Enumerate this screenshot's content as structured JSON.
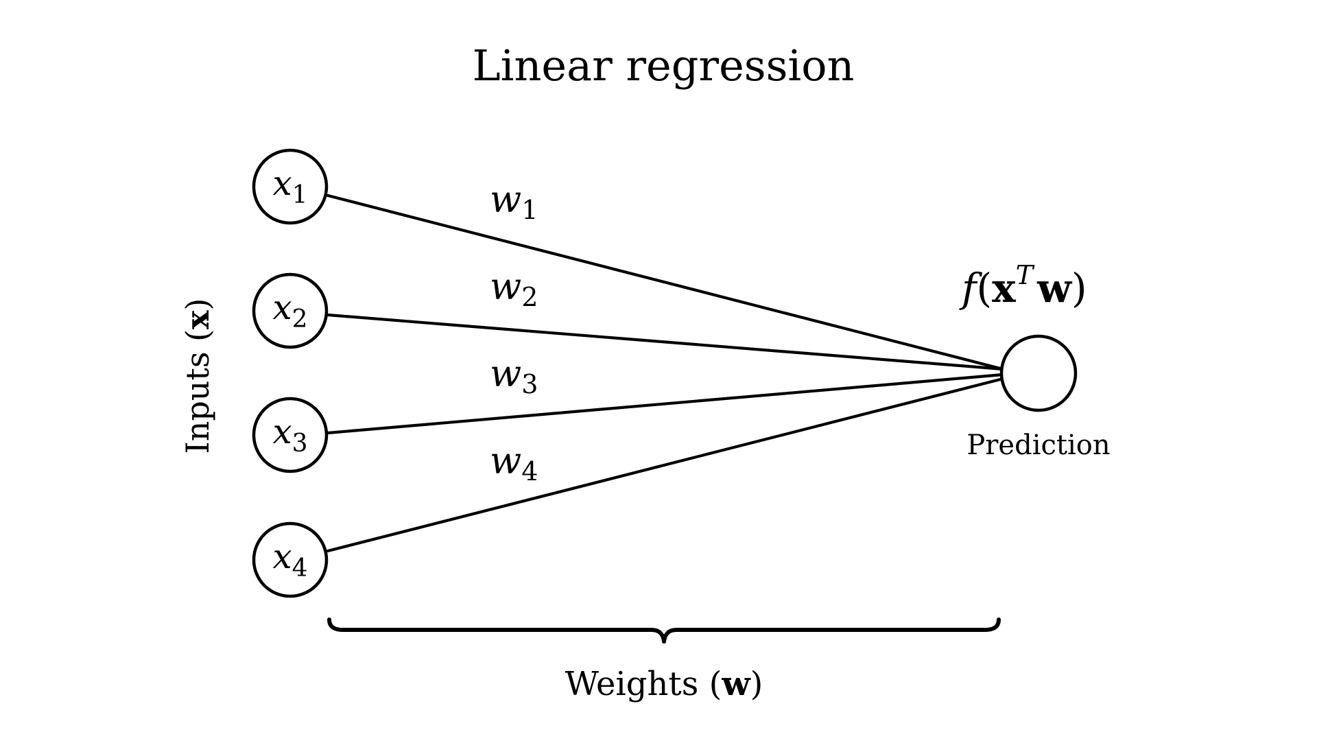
{
  "title": "Linear regression",
  "inputs_label": {
    "text": "Inputs (",
    "bold": "x",
    "close": ")"
  },
  "nodes": [
    {
      "symbol": "x",
      "index": "1"
    },
    {
      "symbol": "x",
      "index": "2"
    },
    {
      "symbol": "x",
      "index": "3"
    },
    {
      "symbol": "x",
      "index": "4"
    }
  ],
  "weights": [
    {
      "symbol": "w",
      "index": "1"
    },
    {
      "symbol": "w",
      "index": "2"
    },
    {
      "symbol": "w",
      "index": "3"
    },
    {
      "symbol": "w",
      "index": "4"
    }
  ],
  "output": {
    "function": "f",
    "open": "(",
    "vector_x": "x",
    "superscript": "T",
    "vector_w": "w",
    "close": ")",
    "label": "Prediction"
  },
  "weights_label": {
    "text": "Weights (",
    "bold": "w",
    "close": ")"
  }
}
